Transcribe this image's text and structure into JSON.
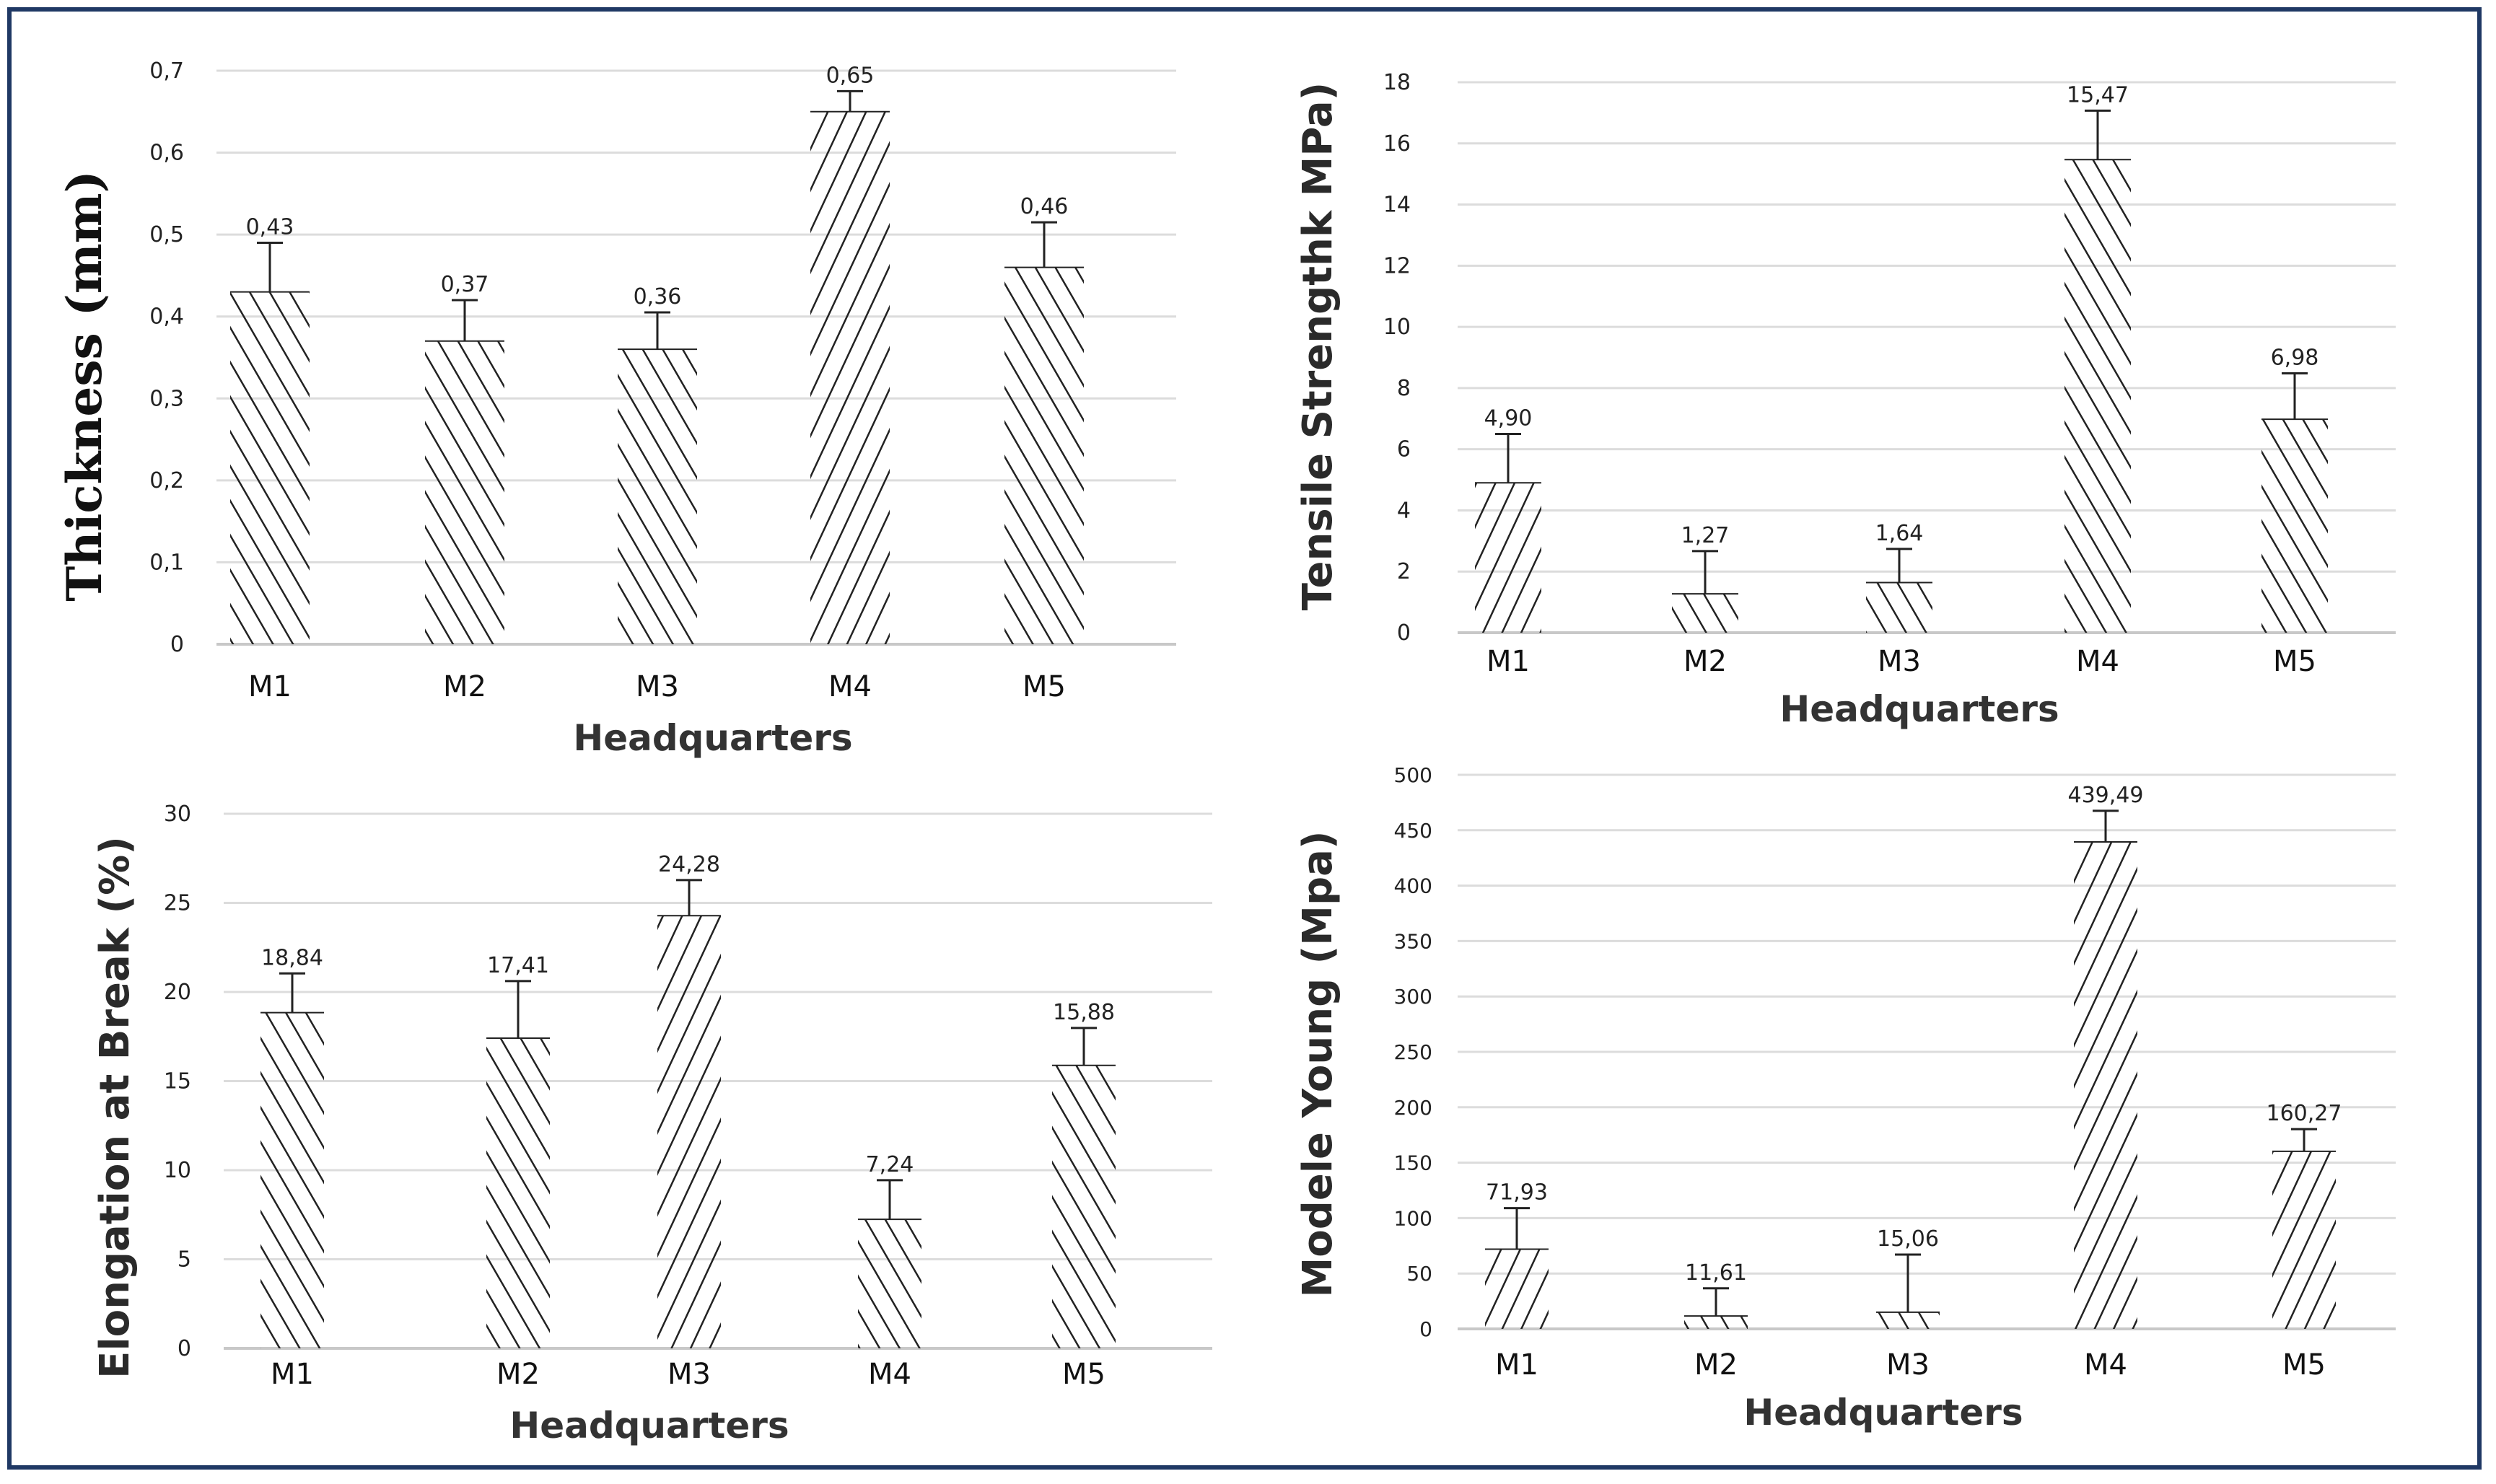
{
  "chart_data": [
    {
      "type": "bar",
      "id": "thickness",
      "categories": [
        "M1",
        "M2",
        "M3",
        "M4",
        "M5"
      ],
      "values": [
        0.43,
        0.37,
        0.36,
        0.65,
        0.46
      ],
      "value_labels": [
        "0,43",
        "0,37",
        "0,36",
        "0,65",
        "0,46"
      ],
      "errors": [
        0.06,
        0.05,
        0.045,
        0.025,
        0.055
      ],
      "yticks": [
        "0",
        "0,1",
        "0,2",
        "0,3",
        "0,4",
        "0,5",
        "0,6",
        "0,7"
      ],
      "ylim": [
        0,
        0.7
      ],
      "xlabel": "Headquarters",
      "ylabel": "Thickness (mm)",
      "grid": true
    },
    {
      "type": "bar",
      "id": "tensile",
      "categories": [
        "M1",
        "M2",
        "M3",
        "M4",
        "M5"
      ],
      "values": [
        4.9,
        1.27,
        1.64,
        15.47,
        6.98
      ],
      "value_labels": [
        "4,90",
        "1,27",
        "1,64",
        "15,47",
        "6,98"
      ],
      "errors": [
        1.6,
        1.4,
        1.1,
        1.6,
        1.5
      ],
      "yticks": [
        "0",
        "2",
        "4",
        "6",
        "8",
        "10",
        "12",
        "14",
        "16",
        "18"
      ],
      "ylim": [
        0,
        18
      ],
      "xlabel": "Headquarters",
      "ylabel": "Tensile Strengthk  MPa)",
      "grid": true
    },
    {
      "type": "bar",
      "id": "elongation",
      "categories": [
        "M1",
        "M2",
        "M3",
        "M4",
        "M5"
      ],
      "values": [
        18.84,
        17.41,
        24.28,
        7.24,
        15.88
      ],
      "value_labels": [
        "18,84",
        "17,41",
        "24,28",
        "7,24",
        "15,88"
      ],
      "errors": [
        2.2,
        3.2,
        2.0,
        2.2,
        2.1
      ],
      "yticks": [
        "0",
        "5",
        "10",
        "15",
        "20",
        "25",
        "30"
      ],
      "ylim": [
        0,
        30
      ],
      "xlabel": "Headquarters",
      "ylabel": "Elongation at Break (%)",
      "grid": true
    },
    {
      "type": "bar",
      "id": "young",
      "categories": [
        "M1",
        "M2",
        "M3",
        "M4",
        "M5"
      ],
      "values": [
        71.93,
        11.61,
        15.06,
        439.49,
        160.27
      ],
      "value_labels": [
        "71,93",
        "11,61",
        "15,06",
        "439,49",
        "160,27"
      ],
      "errors": [
        37,
        25,
        52,
        28,
        20
      ],
      "yticks": [
        "0",
        "50",
        "100",
        "150",
        "200",
        "250",
        "300",
        "350",
        "400",
        "450",
        "500"
      ],
      "ylim": [
        0,
        500
      ],
      "xlabel": "Headquarters",
      "ylabel": "Modele Young (Mpa)",
      "grid": true
    }
  ],
  "colors": {
    "frame": "#1f3864",
    "grid": "#dcdcdc",
    "bar_stroke": "#222222",
    "text": "#222222"
  }
}
